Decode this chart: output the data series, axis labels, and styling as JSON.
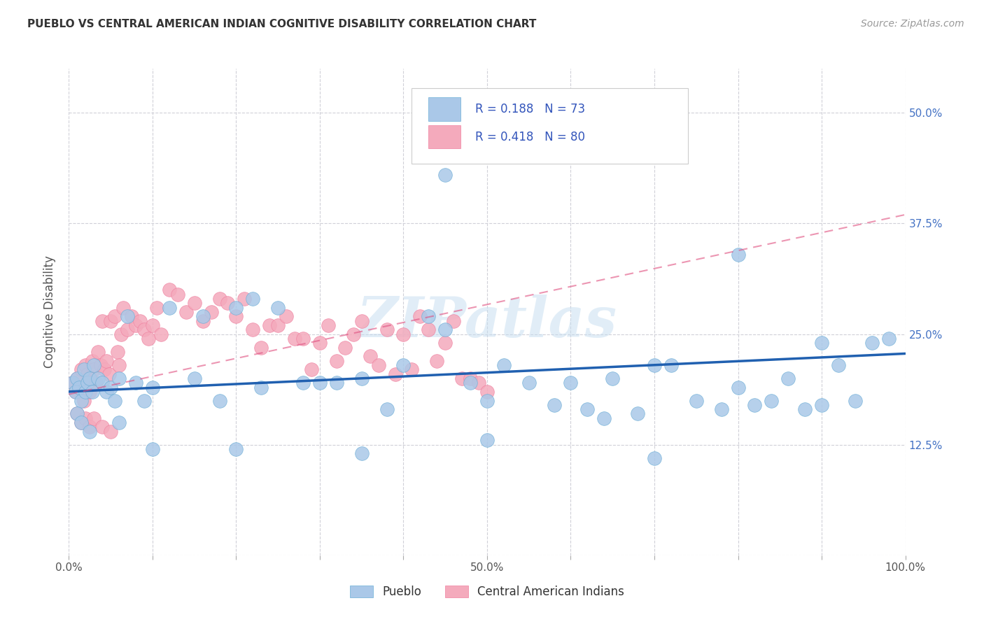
{
  "title": "PUEBLO VS CENTRAL AMERICAN INDIAN COGNITIVE DISABILITY CORRELATION CHART",
  "source": "Source: ZipAtlas.com",
  "ylabel": "Cognitive Disability",
  "xlim": [
    0,
    1.0
  ],
  "ylim": [
    0,
    0.55
  ],
  "ytick_vals": [
    0.0,
    0.125,
    0.25,
    0.375,
    0.5
  ],
  "ytick_labels": [
    "",
    "12.5%",
    "25.0%",
    "37.5%",
    "50.0%"
  ],
  "xtick_positions": [
    0.0,
    0.1,
    0.2,
    0.3,
    0.4,
    0.5,
    0.6,
    0.7,
    0.8,
    0.9,
    1.0
  ],
  "xtick_labels": [
    "0.0%",
    "",
    "",
    "",
    "",
    "50.0%",
    "",
    "",
    "",
    "",
    "100.0%"
  ],
  "pueblo_color": "#aac8e8",
  "central_color": "#f4aabc",
  "pueblo_edge_color": "#6baed6",
  "central_edge_color": "#f080a0",
  "pueblo_line_color": "#2060b0",
  "central_line_color": "#e05080",
  "pueblo_R": 0.188,
  "pueblo_N": 73,
  "central_R": 0.418,
  "central_N": 80,
  "legend_label_1": "Pueblo",
  "legend_label_2": "Central American Indians",
  "watermark": "ZIPatlas",
  "background_color": "#ffffff",
  "grid_color": "#d0d0d8",
  "pueblo_scatter_x": [
    0.005,
    0.008,
    0.01,
    0.012,
    0.015,
    0.018,
    0.02,
    0.022,
    0.025,
    0.028,
    0.03,
    0.035,
    0.04,
    0.045,
    0.05,
    0.055,
    0.06,
    0.07,
    0.08,
    0.09,
    0.1,
    0.12,
    0.15,
    0.16,
    0.18,
    0.2,
    0.22,
    0.23,
    0.25,
    0.28,
    0.3,
    0.32,
    0.35,
    0.38,
    0.4,
    0.43,
    0.45,
    0.48,
    0.5,
    0.52,
    0.55,
    0.58,
    0.6,
    0.62,
    0.64,
    0.65,
    0.68,
    0.7,
    0.72,
    0.75,
    0.78,
    0.8,
    0.82,
    0.84,
    0.86,
    0.88,
    0.9,
    0.92,
    0.94,
    0.96,
    0.98,
    0.01,
    0.015,
    0.025,
    0.06,
    0.1,
    0.2,
    0.35,
    0.5,
    0.7,
    0.8,
    0.9,
    0.45
  ],
  "pueblo_scatter_y": [
    0.195,
    0.185,
    0.2,
    0.19,
    0.175,
    0.21,
    0.185,
    0.195,
    0.2,
    0.185,
    0.215,
    0.2,
    0.195,
    0.185,
    0.19,
    0.175,
    0.2,
    0.27,
    0.195,
    0.175,
    0.19,
    0.28,
    0.2,
    0.27,
    0.175,
    0.28,
    0.29,
    0.19,
    0.28,
    0.195,
    0.195,
    0.195,
    0.2,
    0.165,
    0.215,
    0.27,
    0.255,
    0.195,
    0.175,
    0.215,
    0.195,
    0.17,
    0.195,
    0.165,
    0.155,
    0.2,
    0.16,
    0.215,
    0.215,
    0.175,
    0.165,
    0.19,
    0.17,
    0.175,
    0.2,
    0.165,
    0.17,
    0.215,
    0.175,
    0.24,
    0.245,
    0.16,
    0.15,
    0.14,
    0.15,
    0.12,
    0.12,
    0.115,
    0.13,
    0.11,
    0.34,
    0.24,
    0.43
  ],
  "central_scatter_x": [
    0.005,
    0.008,
    0.01,
    0.012,
    0.015,
    0.018,
    0.02,
    0.022,
    0.025,
    0.025,
    0.028,
    0.03,
    0.032,
    0.035,
    0.038,
    0.04,
    0.042,
    0.045,
    0.048,
    0.05,
    0.055,
    0.058,
    0.06,
    0.062,
    0.065,
    0.07,
    0.075,
    0.08,
    0.085,
    0.09,
    0.095,
    0.1,
    0.105,
    0.11,
    0.12,
    0.13,
    0.14,
    0.15,
    0.16,
    0.17,
    0.18,
    0.19,
    0.2,
    0.21,
    0.22,
    0.23,
    0.24,
    0.25,
    0.26,
    0.27,
    0.28,
    0.29,
    0.3,
    0.31,
    0.32,
    0.33,
    0.34,
    0.35,
    0.36,
    0.37,
    0.38,
    0.39,
    0.4,
    0.41,
    0.42,
    0.43,
    0.44,
    0.45,
    0.46,
    0.47,
    0.48,
    0.49,
    0.5,
    0.01,
    0.015,
    0.02,
    0.025,
    0.03,
    0.04,
    0.05
  ],
  "central_scatter_y": [
    0.195,
    0.185,
    0.2,
    0.19,
    0.21,
    0.175,
    0.215,
    0.205,
    0.2,
    0.185,
    0.22,
    0.21,
    0.195,
    0.23,
    0.215,
    0.265,
    0.21,
    0.22,
    0.205,
    0.265,
    0.27,
    0.23,
    0.215,
    0.25,
    0.28,
    0.255,
    0.27,
    0.26,
    0.265,
    0.255,
    0.245,
    0.26,
    0.28,
    0.25,
    0.3,
    0.295,
    0.275,
    0.285,
    0.265,
    0.275,
    0.29,
    0.285,
    0.27,
    0.29,
    0.255,
    0.235,
    0.26,
    0.26,
    0.27,
    0.245,
    0.245,
    0.21,
    0.24,
    0.26,
    0.22,
    0.235,
    0.25,
    0.265,
    0.225,
    0.215,
    0.255,
    0.205,
    0.25,
    0.21,
    0.27,
    0.255,
    0.22,
    0.24,
    0.265,
    0.2,
    0.2,
    0.195,
    0.185,
    0.16,
    0.15,
    0.155,
    0.145,
    0.155,
    0.145,
    0.14
  ],
  "pueblo_line_x0": 0.0,
  "pueblo_line_y0": 0.185,
  "pueblo_line_x1": 1.0,
  "pueblo_line_y1": 0.228,
  "central_line_x0": 0.0,
  "central_line_y0": 0.182,
  "central_line_x1": 1.0,
  "central_line_y1": 0.385
}
